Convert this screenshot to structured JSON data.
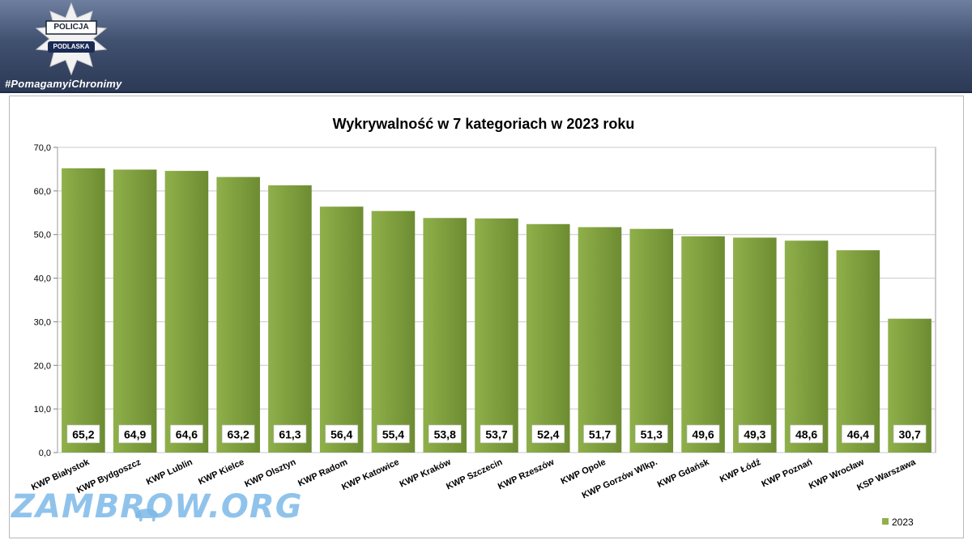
{
  "header": {
    "badge_top": "POLICJA",
    "badge_bottom": "PODLASKA",
    "hashtag": "#PomagamyiChronimy"
  },
  "watermark": {
    "text": "ZAMBROW.ORG"
  },
  "colors": {
    "bar": "#8fb04a",
    "bar_dark": "#6d8c32",
    "banner": "#3a4a6a",
    "grid": "#c8c8c8"
  },
  "chart_data": {
    "type": "bar",
    "title": "Wykrywalność w 7 kategoriach w 2023 roku",
    "categories": [
      "KWP Białystok",
      "KWP Bydgoszcz",
      "KWP Lublin",
      "KWP Kielce",
      "KWP Olsztyn",
      "KWP Radom",
      "KWP Katowice",
      "KWP Kraków",
      "KWP Szczecin",
      "KWP Rzeszów",
      "KWP Opole",
      "KWP Gorzów Wlkp.",
      "KWP Gdańsk",
      "KWP Łódź",
      "KWP Poznań",
      "KWP Wrocław",
      "KSP Warszawa"
    ],
    "series": [
      {
        "name": "2023",
        "values": [
          65.2,
          64.9,
          64.6,
          63.2,
          61.3,
          56.4,
          55.4,
          53.8,
          53.7,
          52.4,
          51.7,
          51.3,
          49.6,
          49.3,
          48.6,
          46.4,
          30.7
        ]
      }
    ],
    "data_labels": [
      "65,2",
      "64,9",
      "64,6",
      "63,2",
      "61,3",
      "56,4",
      "55,4",
      "53,8",
      "53,7",
      "52,4",
      "51,7",
      "51,3",
      "49,6",
      "49,3",
      "48,6",
      "46,4",
      "30,7"
    ],
    "y_ticks": [
      "0,0",
      "10,0",
      "20,0",
      "30,0",
      "40,0",
      "50,0",
      "60,0",
      "70,0"
    ],
    "ylim": [
      0,
      70
    ],
    "y_step": 10,
    "grid": true,
    "legend_position": "bottom-right",
    "xlabel": "",
    "ylabel": ""
  }
}
